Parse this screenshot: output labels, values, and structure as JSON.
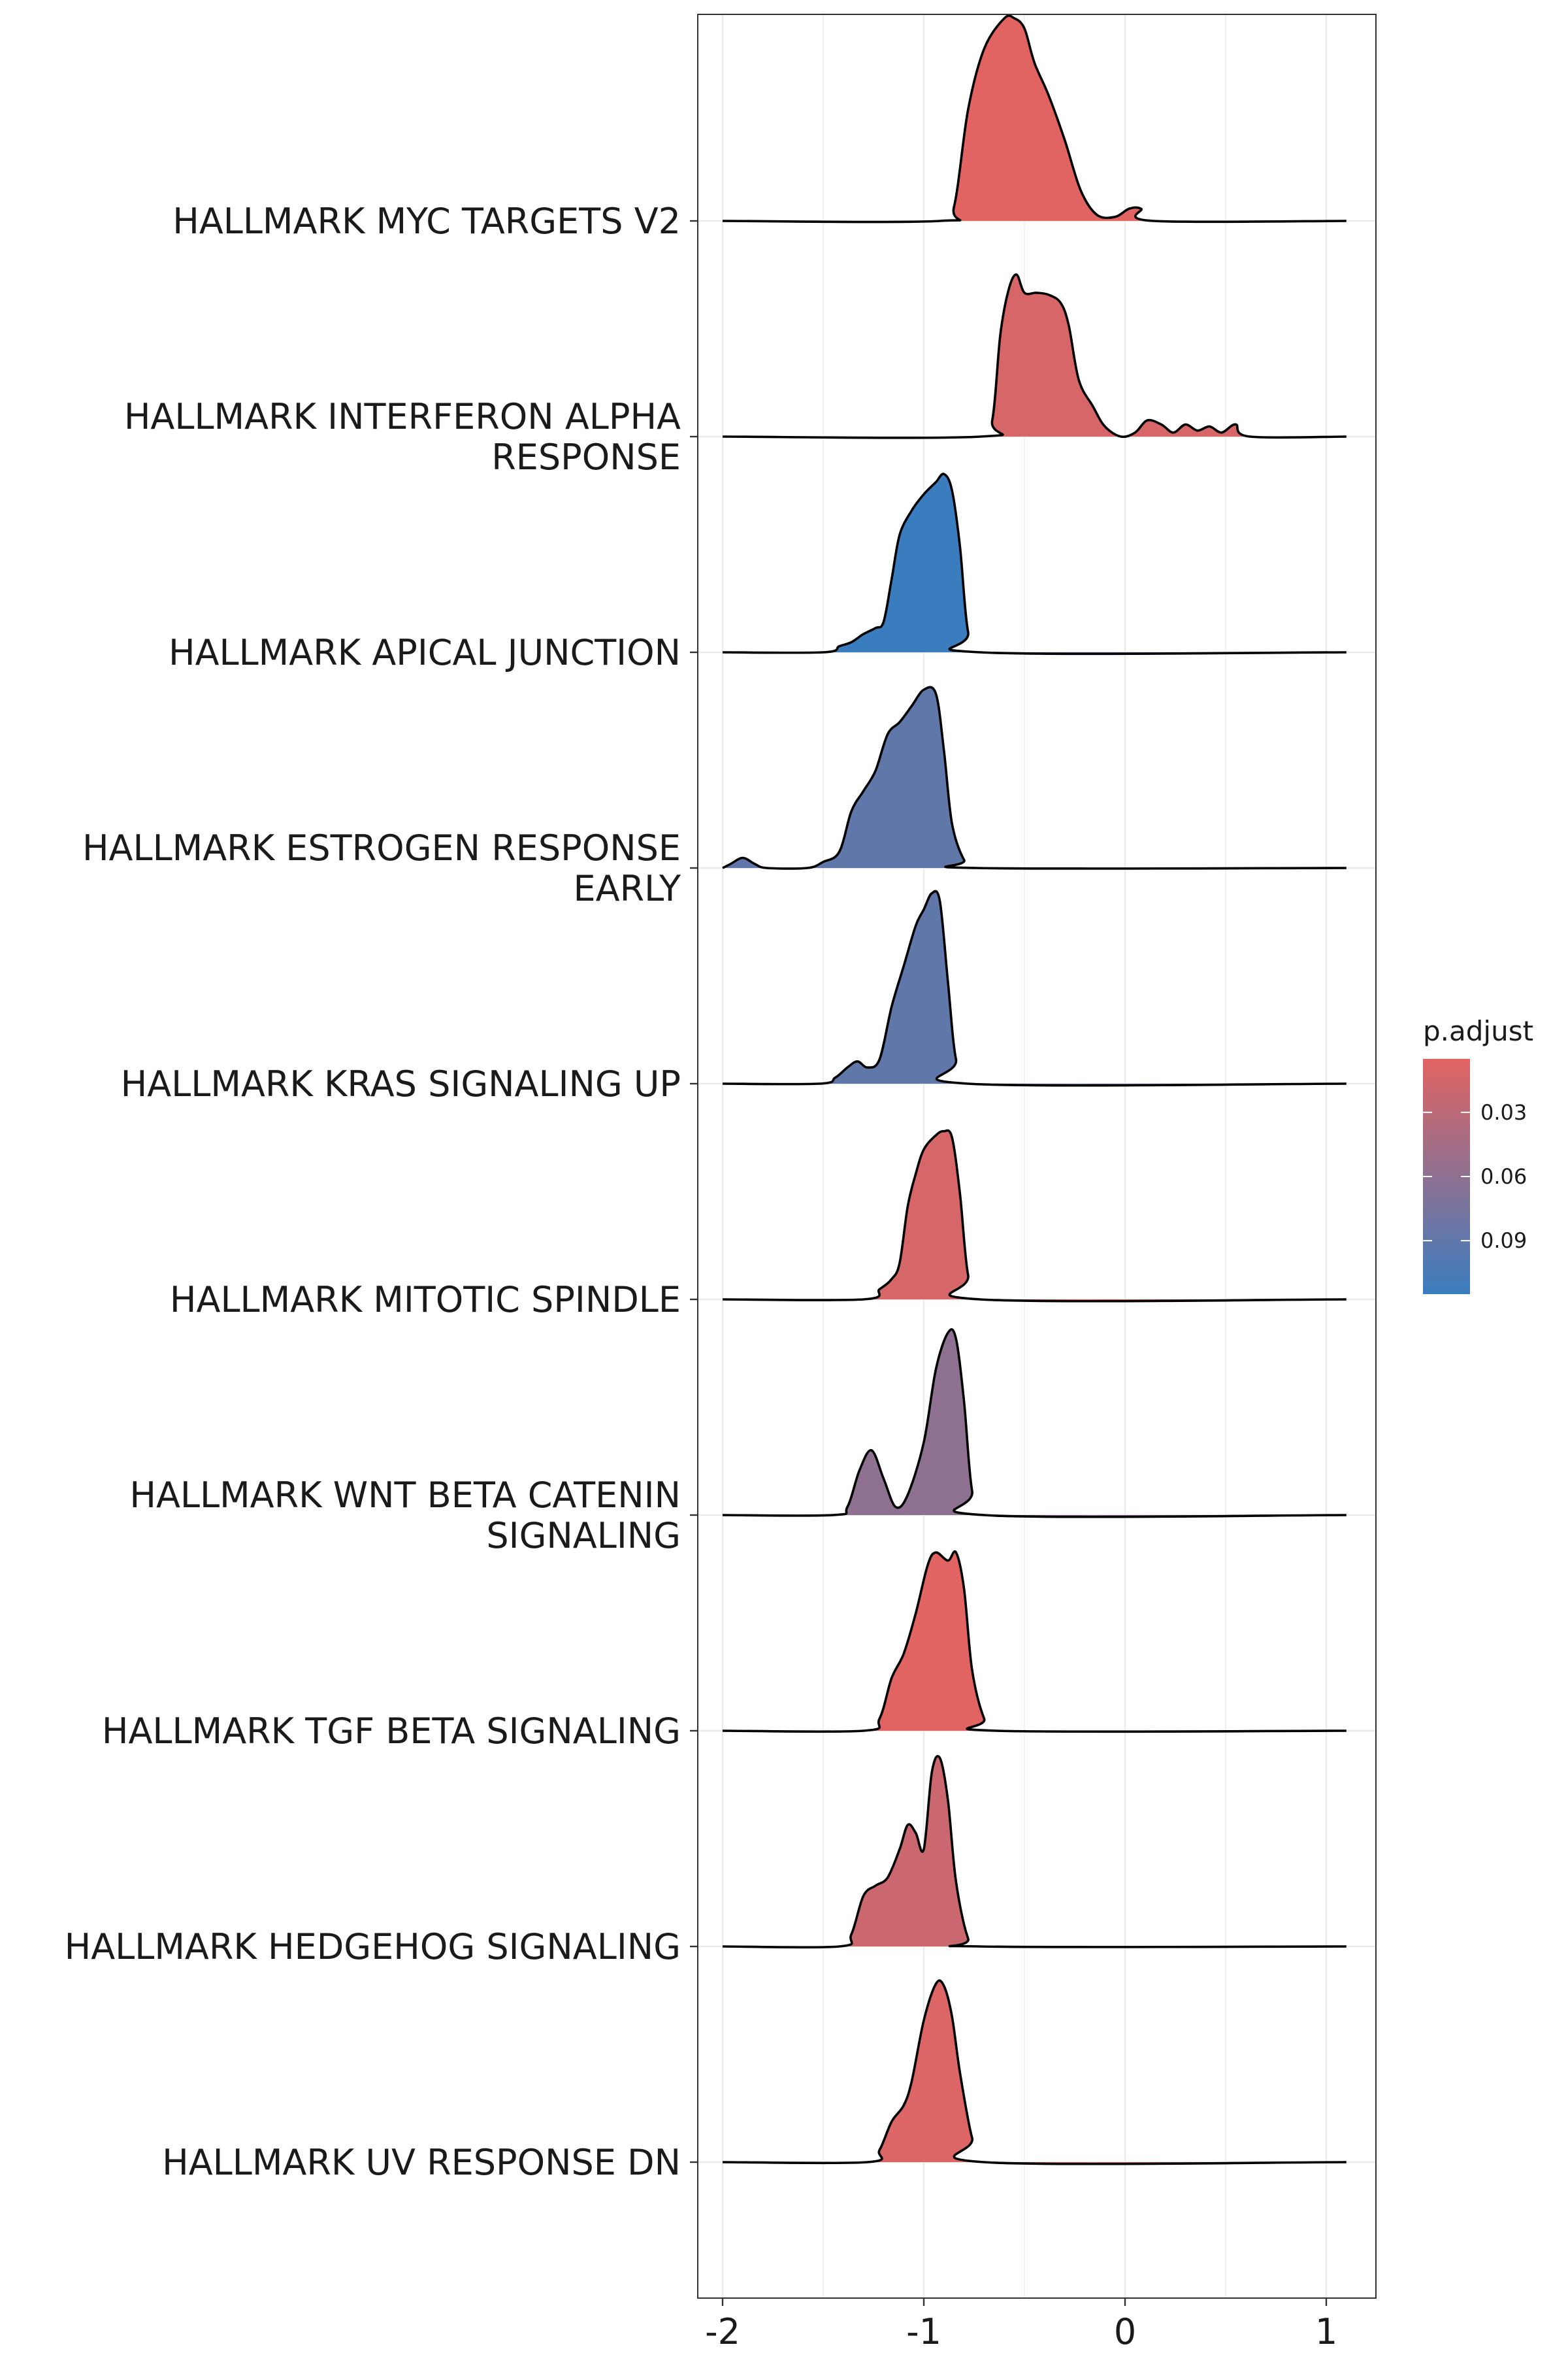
{
  "chart_data": {
    "type": "ridgeline",
    "xlim": [
      -2.12,
      1.25
    ],
    "x_ticks": [
      -2,
      -1,
      0,
      1
    ],
    "x_tick_labels": [
      "-2",
      "-1",
      "0",
      "1"
    ],
    "grid": true,
    "legend": {
      "title": "p.adjust",
      "position": "right",
      "range": [
        0.005,
        0.115
      ],
      "colors": [
        "#E16462",
        "#3A7DBF"
      ],
      "ticks": [
        0.03,
        0.06,
        0.09
      ],
      "tick_labels": [
        "0.03",
        "0.06",
        "0.09"
      ]
    },
    "categories": [
      {
        "label_lines": [
          "HALLMARK MYC TARGETS V2"
        ],
        "p_adjust": 0.005,
        "density": [
          [
            -2.0,
            0
          ],
          [
            -0.92,
            0
          ],
          [
            -0.85,
            0.07
          ],
          [
            -0.78,
            0.55
          ],
          [
            -0.7,
            0.85
          ],
          [
            -0.6,
            1.0
          ],
          [
            -0.55,
            1.0
          ],
          [
            -0.5,
            0.95
          ],
          [
            -0.45,
            0.78
          ],
          [
            -0.38,
            0.62
          ],
          [
            -0.3,
            0.4
          ],
          [
            -0.22,
            0.15
          ],
          [
            -0.14,
            0.03
          ],
          [
            -0.05,
            0.02
          ],
          [
            0.02,
            0.06
          ],
          [
            0.08,
            0.06
          ],
          [
            0.14,
            0.0
          ],
          [
            1.1,
            0
          ]
        ]
      },
      {
        "label_lines": [
          "HALLMARK INTERFERON ALPHA",
          "RESPONSE"
        ],
        "p_adjust": 0.012,
        "density": [
          [
            -2.0,
            0
          ],
          [
            -0.72,
            0
          ],
          [
            -0.66,
            0.08
          ],
          [
            -0.62,
            0.5
          ],
          [
            -0.58,
            0.72
          ],
          [
            -0.54,
            0.8
          ],
          [
            -0.5,
            0.71
          ],
          [
            -0.44,
            0.71
          ],
          [
            -0.38,
            0.7
          ],
          [
            -0.32,
            0.66
          ],
          [
            -0.28,
            0.55
          ],
          [
            -0.23,
            0.28
          ],
          [
            -0.16,
            0.15
          ],
          [
            -0.1,
            0.05
          ],
          [
            -0.02,
            0.0
          ],
          [
            0.05,
            0.02
          ],
          [
            0.11,
            0.08
          ],
          [
            0.18,
            0.06
          ],
          [
            0.24,
            0.02
          ],
          [
            0.3,
            0.06
          ],
          [
            0.36,
            0.03
          ],
          [
            0.42,
            0.05
          ],
          [
            0.48,
            0.02
          ],
          [
            0.55,
            0.06
          ],
          [
            0.62,
            0.0
          ],
          [
            1.1,
            0
          ]
        ]
      },
      {
        "label_lines": [
          "HALLMARK APICAL JUNCTION"
        ],
        "p_adjust": 0.115,
        "density": [
          [
            -2.0,
            0
          ],
          [
            -1.5,
            0
          ],
          [
            -1.42,
            0.03
          ],
          [
            -1.36,
            0.05
          ],
          [
            -1.3,
            0.09
          ],
          [
            -1.24,
            0.12
          ],
          [
            -1.2,
            0.15
          ],
          [
            -1.16,
            0.36
          ],
          [
            -1.12,
            0.58
          ],
          [
            -1.06,
            0.7
          ],
          [
            -1.0,
            0.78
          ],
          [
            -0.94,
            0.84
          ],
          [
            -0.9,
            0.88
          ],
          [
            -0.86,
            0.8
          ],
          [
            -0.82,
            0.52
          ],
          [
            -0.78,
            0.1
          ],
          [
            -0.72,
            0.0
          ],
          [
            1.1,
            0
          ]
        ]
      },
      {
        "label_lines": [
          "HALLMARK ESTROGEN RESPONSE",
          "EARLY"
        ],
        "p_adjust": 0.09,
        "density": [
          [
            -2.0,
            0
          ],
          [
            -1.96,
            0.02
          ],
          [
            -1.9,
            0.05
          ],
          [
            -1.84,
            0.02
          ],
          [
            -1.78,
            0.0
          ],
          [
            -1.58,
            0.0
          ],
          [
            -1.5,
            0.03
          ],
          [
            -1.42,
            0.08
          ],
          [
            -1.36,
            0.28
          ],
          [
            -1.3,
            0.38
          ],
          [
            -1.24,
            0.48
          ],
          [
            -1.18,
            0.66
          ],
          [
            -1.12,
            0.72
          ],
          [
            -1.06,
            0.8
          ],
          [
            -1.0,
            0.88
          ],
          [
            -0.94,
            0.86
          ],
          [
            -0.9,
            0.58
          ],
          [
            -0.86,
            0.22
          ],
          [
            -0.8,
            0.04
          ],
          [
            -0.74,
            0.0
          ],
          [
            1.1,
            0
          ]
        ]
      },
      {
        "label_lines": [
          "HALLMARK KRAS SIGNALING UP"
        ],
        "p_adjust": 0.09,
        "density": [
          [
            -2.0,
            0
          ],
          [
            -1.52,
            0
          ],
          [
            -1.44,
            0.03
          ],
          [
            -1.38,
            0.08
          ],
          [
            -1.33,
            0.11
          ],
          [
            -1.28,
            0.08
          ],
          [
            -1.22,
            0.12
          ],
          [
            -1.16,
            0.38
          ],
          [
            -1.1,
            0.58
          ],
          [
            -1.04,
            0.78
          ],
          [
            -1.0,
            0.86
          ],
          [
            -0.96,
            0.94
          ],
          [
            -0.92,
            0.9
          ],
          [
            -0.88,
            0.5
          ],
          [
            -0.84,
            0.12
          ],
          [
            -0.78,
            0.0
          ],
          [
            1.1,
            0
          ]
        ]
      },
      {
        "label_lines": [
          "HALLMARK MITOTIC SPINDLE"
        ],
        "p_adjust": 0.012,
        "density": [
          [
            -2.0,
            0
          ],
          [
            -1.3,
            0
          ],
          [
            -1.22,
            0.05
          ],
          [
            -1.16,
            0.1
          ],
          [
            -1.12,
            0.18
          ],
          [
            -1.08,
            0.46
          ],
          [
            -1.04,
            0.62
          ],
          [
            -1.0,
            0.74
          ],
          [
            -0.94,
            0.81
          ],
          [
            -0.9,
            0.83
          ],
          [
            -0.86,
            0.8
          ],
          [
            -0.82,
            0.52
          ],
          [
            -0.78,
            0.12
          ],
          [
            -0.72,
            0.0
          ],
          [
            1.1,
            0
          ]
        ]
      },
      {
        "label_lines": [
          "HALLMARK WNT BETA CATENIN",
          "SIGNALING"
        ],
        "p_adjust": 0.06,
        "density": [
          [
            -2.0,
            0
          ],
          [
            -1.45,
            0
          ],
          [
            -1.38,
            0.04
          ],
          [
            -1.32,
            0.22
          ],
          [
            -1.26,
            0.32
          ],
          [
            -1.2,
            0.18
          ],
          [
            -1.14,
            0.04
          ],
          [
            -1.08,
            0.1
          ],
          [
            -1.0,
            0.36
          ],
          [
            -0.94,
            0.72
          ],
          [
            -0.88,
            0.9
          ],
          [
            -0.84,
            0.87
          ],
          [
            -0.8,
            0.56
          ],
          [
            -0.76,
            0.12
          ],
          [
            -0.7,
            0.0
          ],
          [
            1.1,
            0
          ]
        ]
      },
      {
        "label_lines": [
          "HALLMARK TGF BETA SIGNALING"
        ],
        "p_adjust": 0.005,
        "density": [
          [
            -2.0,
            0
          ],
          [
            -1.3,
            0
          ],
          [
            -1.22,
            0.06
          ],
          [
            -1.16,
            0.26
          ],
          [
            -1.1,
            0.38
          ],
          [
            -1.04,
            0.58
          ],
          [
            -0.98,
            0.82
          ],
          [
            -0.94,
            0.88
          ],
          [
            -0.88,
            0.84
          ],
          [
            -0.84,
            0.88
          ],
          [
            -0.8,
            0.7
          ],
          [
            -0.76,
            0.3
          ],
          [
            -0.7,
            0.06
          ],
          [
            -0.64,
            0.0
          ],
          [
            1.1,
            0
          ]
        ]
      },
      {
        "label_lines": [
          "HALLMARK HEDGEHOG SIGNALING"
        ],
        "p_adjust": 0.02,
        "density": [
          [
            -2.0,
            0
          ],
          [
            -1.42,
            0
          ],
          [
            -1.36,
            0.06
          ],
          [
            -1.3,
            0.25
          ],
          [
            -1.24,
            0.3
          ],
          [
            -1.18,
            0.34
          ],
          [
            -1.12,
            0.48
          ],
          [
            -1.08,
            0.6
          ],
          [
            -1.04,
            0.56
          ],
          [
            -1.0,
            0.48
          ],
          [
            -0.96,
            0.86
          ],
          [
            -0.92,
            0.93
          ],
          [
            -0.88,
            0.72
          ],
          [
            -0.84,
            0.32
          ],
          [
            -0.78,
            0.04
          ],
          [
            -0.72,
            0.0
          ],
          [
            1.1,
            0
          ]
        ]
      },
      {
        "label_lines": [
          "HALLMARK UV RESPONSE DN"
        ],
        "p_adjust": 0.008,
        "density": [
          [
            -2.0,
            0
          ],
          [
            -1.28,
            0
          ],
          [
            -1.22,
            0.06
          ],
          [
            -1.16,
            0.2
          ],
          [
            -1.1,
            0.28
          ],
          [
            -1.06,
            0.4
          ],
          [
            -1.0,
            0.7
          ],
          [
            -0.94,
            0.88
          ],
          [
            -0.9,
            0.87
          ],
          [
            -0.86,
            0.72
          ],
          [
            -0.82,
            0.44
          ],
          [
            -0.76,
            0.12
          ],
          [
            -0.7,
            0.0
          ],
          [
            1.1,
            0
          ]
        ]
      }
    ]
  }
}
